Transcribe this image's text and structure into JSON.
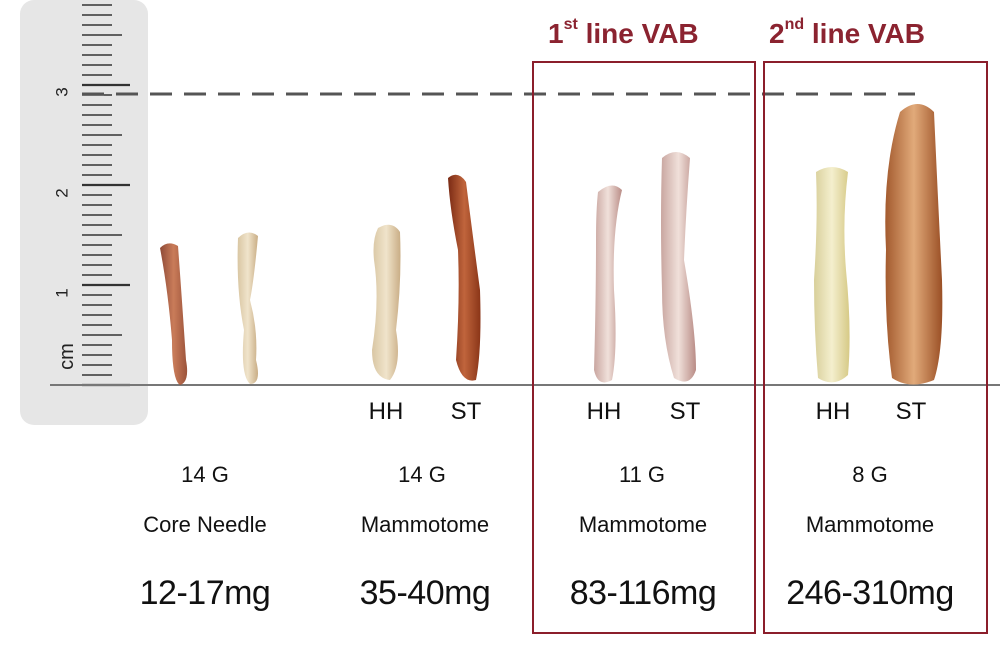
{
  "ruler": {
    "unit_label": "cm",
    "tick_labels": [
      "1",
      "2",
      "3"
    ]
  },
  "groups": [
    {
      "gauge": "14 G",
      "device": "Core Needle",
      "weight": "12-17mg",
      "tags": []
    },
    {
      "gauge": "14 G",
      "device": "Mammotome",
      "weight": "35-40mg",
      "tags": [
        "HH",
        "ST"
      ]
    },
    {
      "gauge": "11 G",
      "device": "Mammotome",
      "weight": "83-116mg",
      "tags": [
        "HH",
        "ST"
      ],
      "box_title_ordinal": "1",
      "box_title_suffix": "st",
      "box_title_rest": " line VAB"
    },
    {
      "gauge": "8 G",
      "device": "Mammotome",
      "weight": "246-310mg",
      "tags": [
        "HH",
        "ST"
      ],
      "box_title_ordinal": "2",
      "box_title_suffix": "nd",
      "box_title_rest": " line VAB"
    }
  ],
  "colors": {
    "box_border": "#8b1e2b",
    "box_title": "#8b2330",
    "ruler_bg": "#e6e6e6"
  }
}
